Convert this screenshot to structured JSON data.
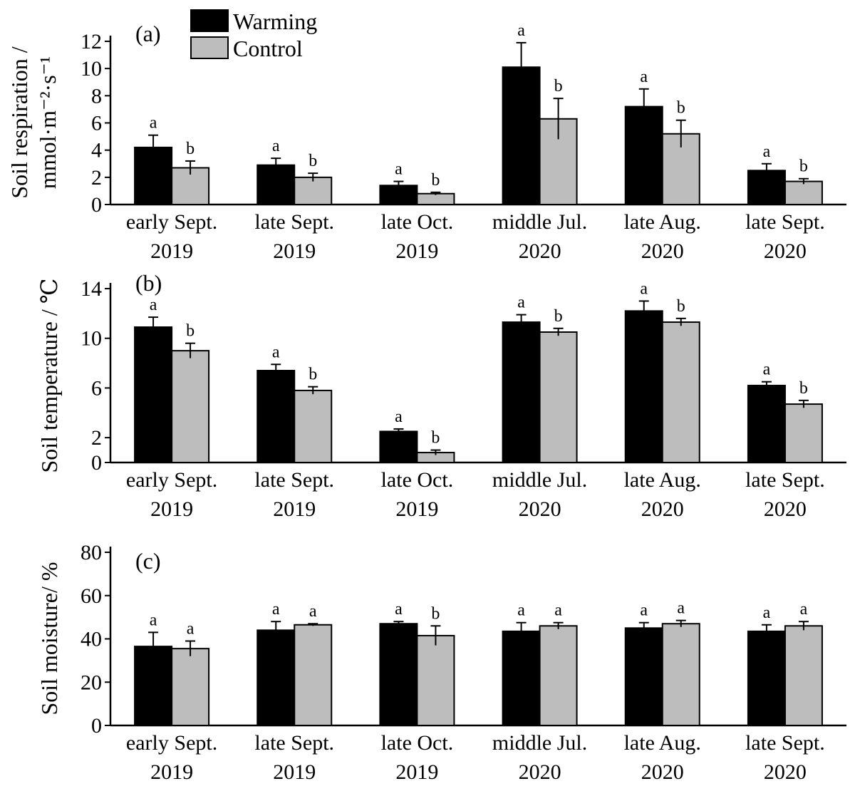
{
  "legend": [
    {
      "name": "Warming",
      "color": "#000000"
    },
    {
      "name": "Control",
      "color": "#bdbdbd"
    }
  ],
  "chart_data": [
    {
      "type": "bar",
      "panel_label": "(a)",
      "ylabel_line1": "Soil respiration /",
      "ylabel_line2": "mmol·m⁻²·s⁻¹",
      "ylim": [
        0,
        12
      ],
      "yticks": [
        0,
        2,
        4,
        6,
        8,
        10,
        12
      ],
      "categories": [
        [
          "early Sept.",
          "2019"
        ],
        [
          "late Sept.",
          "2019"
        ],
        [
          "late Oct.",
          "2019"
        ],
        [
          "middle Jul.",
          "2020"
        ],
        [
          "late Aug.",
          "2020"
        ],
        [
          "late Sept.",
          "2020"
        ]
      ],
      "series": [
        {
          "name": "Warming",
          "values": [
            4.2,
            2.9,
            1.4,
            10.1,
            7.2,
            2.5
          ],
          "errors": [
            0.9,
            0.5,
            0.3,
            1.8,
            1.3,
            0.5
          ],
          "letters": [
            "a",
            "a",
            "a",
            "a",
            "a",
            "a"
          ]
        },
        {
          "name": "Control",
          "values": [
            2.7,
            2.0,
            0.8,
            6.3,
            5.2,
            1.7
          ],
          "errors": [
            0.5,
            0.3,
            0.1,
            1.5,
            1.0,
            0.2
          ],
          "letters": [
            "b",
            "b",
            "b",
            "b",
            "b",
            "b"
          ]
        }
      ]
    },
    {
      "type": "bar",
      "panel_label": "(b)",
      "ylabel_line1": "Soil temperature / ℃",
      "ylabel_line2": "",
      "ylim": [
        0,
        14
      ],
      "yticks": [
        0,
        2,
        6,
        10,
        14
      ],
      "categories": [
        [
          "early Sept.",
          "2019"
        ],
        [
          "late Sept.",
          "2019"
        ],
        [
          "late Oct.",
          "2019"
        ],
        [
          "middle Jul.",
          "2020"
        ],
        [
          "late Aug.",
          "2020"
        ],
        [
          "late Sept.",
          "2020"
        ]
      ],
      "series": [
        {
          "name": "Warming",
          "values": [
            10.9,
            7.4,
            2.5,
            11.3,
            12.2,
            6.2
          ],
          "errors": [
            0.8,
            0.5,
            0.2,
            0.6,
            0.8,
            0.3
          ],
          "letters": [
            "a",
            "a",
            "a",
            "a",
            "a",
            "a"
          ]
        },
        {
          "name": "Control",
          "values": [
            9.0,
            5.8,
            0.8,
            10.5,
            11.3,
            4.7
          ],
          "errors": [
            0.6,
            0.3,
            0.2,
            0.3,
            0.3,
            0.3
          ],
          "letters": [
            "b",
            "b",
            "b",
            "b",
            "b",
            "b"
          ]
        }
      ]
    },
    {
      "type": "bar",
      "panel_label": "(c)",
      "ylabel_line1": "Soil moisture/ %",
      "ylabel_line2": "",
      "ylim": [
        0,
        80
      ],
      "yticks": [
        0,
        20,
        40,
        60,
        80
      ],
      "categories": [
        [
          "early Sept.",
          "2019"
        ],
        [
          "late Sept.",
          "2019"
        ],
        [
          "late Oct.",
          "2019"
        ],
        [
          "middle Jul.",
          "2020"
        ],
        [
          "late Aug.",
          "2020"
        ],
        [
          "late Sept.",
          "2020"
        ]
      ],
      "series": [
        {
          "name": "Warming",
          "values": [
            36.5,
            44.0,
            47.0,
            43.5,
            45.0,
            43.5
          ],
          "errors": [
            6.5,
            4.0,
            1.0,
            4.0,
            2.5,
            3.0
          ],
          "letters": [
            "a",
            "a",
            "a",
            "a",
            "a",
            "a"
          ]
        },
        {
          "name": "Control",
          "values": [
            35.5,
            46.5,
            41.5,
            46.0,
            47.0,
            46.0
          ],
          "errors": [
            3.5,
            0.5,
            4.5,
            1.5,
            1.5,
            2.0
          ],
          "letters": [
            "a",
            "a",
            "b",
            "a",
            "a",
            "a"
          ]
        }
      ]
    }
  ]
}
